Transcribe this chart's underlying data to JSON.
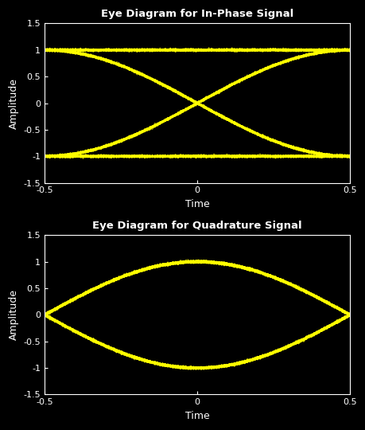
{
  "title1": "Eye Diagram for In-Phase Signal",
  "title2": "Eye Diagram for Quadrature Signal",
  "xlabel": "Time",
  "ylabel": "Amplitude",
  "xlim": [
    -0.5,
    0.5
  ],
  "ylim": [
    -1.5,
    1.5
  ],
  "ytick_vals": [
    -1.5,
    -1.0,
    -0.5,
    0.0,
    0.5,
    1.0,
    1.5
  ],
  "ytick_labels": [
    "-1.5",
    "-1",
    "-0.5",
    "0",
    "0.5",
    "1",
    "1.5"
  ],
  "xtick_vals": [
    -0.5,
    0.0,
    0.5
  ],
  "xtick_labels": [
    "-0.5",
    "0",
    "0.5"
  ],
  "line_color": "#ffff00",
  "bg_color": "#000000",
  "fig_bg_color": "#000000",
  "text_color": "#ffffff",
  "spine_color": "#ffffff",
  "line_width": 0.8,
  "alpha": 0.6,
  "n_symbols": 300,
  "sps": 120
}
